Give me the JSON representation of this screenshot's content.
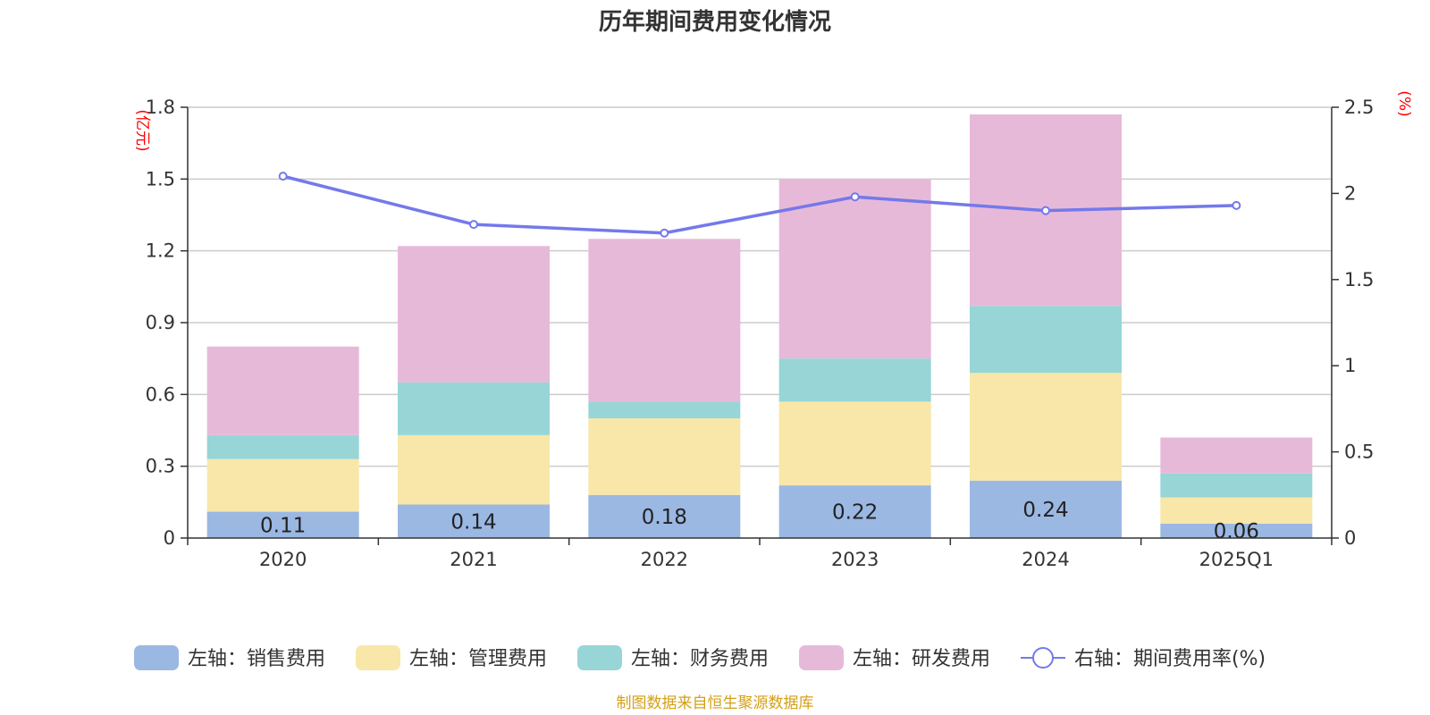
{
  "chart_data": {
    "type": "bar",
    "title": "历年期间费用变化情况",
    "categories": [
      "2020",
      "2021",
      "2022",
      "2023",
      "2024",
      "2025Q1"
    ],
    "left_axis": {
      "unit_label": "(亿元)",
      "ylim": [
        0,
        1.8
      ],
      "ticks": [
        "0",
        "0.3",
        "0.6",
        "0.9",
        "1.2",
        "1.5",
        "1.8"
      ]
    },
    "right_axis": {
      "unit_label": "(%)",
      "ylim": [
        0,
        2.5
      ],
      "ticks": [
        "0",
        "0.5",
        "1",
        "1.5",
        "2",
        "2.5"
      ]
    },
    "series": [
      {
        "name": "左轴：销售费用",
        "type": "bar",
        "stack": true,
        "axis": "left",
        "color": "#9bb8e3",
        "values": [
          0.11,
          0.14,
          0.18,
          0.22,
          0.24,
          0.06
        ],
        "data_labels": [
          "0.11",
          "0.14",
          "0.18",
          "0.22",
          "0.24",
          "0.06"
        ]
      },
      {
        "name": "左轴：管理费用",
        "type": "bar",
        "stack": true,
        "axis": "left",
        "color": "#f8e7a8",
        "values": [
          0.22,
          0.29,
          0.32,
          0.35,
          0.45,
          0.11
        ]
      },
      {
        "name": "左轴：财务费用",
        "type": "bar",
        "stack": true,
        "axis": "left",
        "color": "#98d5d6",
        "values": [
          0.1,
          0.22,
          0.07,
          0.18,
          0.28,
          0.1
        ]
      },
      {
        "name": "左轴：研发费用",
        "type": "bar",
        "stack": true,
        "axis": "left",
        "color": "#e7b9d9",
        "values": [
          0.37,
          0.57,
          0.68,
          0.75,
          0.8,
          0.15
        ]
      },
      {
        "name": "右轴：期间费用率(%)",
        "type": "line",
        "axis": "right",
        "color": "#7479ea",
        "values": [
          2.1,
          1.82,
          1.77,
          1.98,
          1.9,
          1.93
        ]
      }
    ],
    "grid": true,
    "legend_position": "bottom",
    "source_note": "制图数据来自恒生聚源数据库"
  }
}
